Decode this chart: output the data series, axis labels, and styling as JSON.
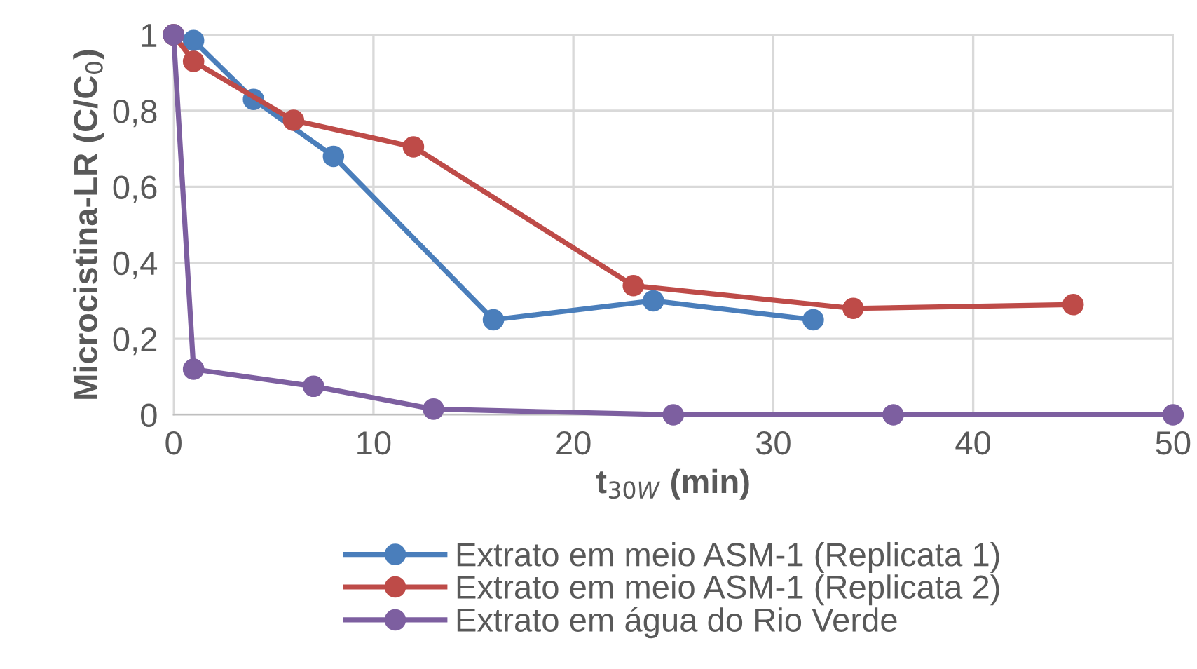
{
  "chart_data": {
    "type": "line",
    "xlabel": "t$_{30W}$ (min)",
    "ylabel": "Microcistina-LR (C/C$_{0}$)",
    "xlim": [
      0,
      50
    ],
    "xticks": [
      0,
      10,
      20,
      30,
      40,
      50
    ],
    "ylim": [
      0,
      1
    ],
    "yticks": [
      0,
      {
        "value": 0.2,
        "label": "0,2"
      },
      {
        "value": 0.4,
        "label": "0,4"
      },
      {
        "value": 0.6,
        "label": "0,6"
      },
      {
        "value": 0.8,
        "label": "0,8"
      },
      1
    ],
    "grid": true,
    "legend": "bottom",
    "marker": "circle",
    "line_style": "solid",
    "series": [
      {
        "name": "Extrato em meio ASM-1 (Replicata 1)",
        "color": "#4a7ebb",
        "x": [
          0,
          1,
          4,
          8,
          16,
          24,
          32
        ],
        "values": [
          1,
          0.985,
          0.83,
          0.68,
          0.25,
          0.3,
          0.25
        ]
      },
      {
        "name": "Extrato em meio ASM-1 (Replicata 2)",
        "color": "#be4b48",
        "x": [
          0,
          1,
          6,
          12,
          23,
          34,
          45
        ],
        "values": [
          1,
          0.93,
          0.775,
          0.705,
          0.34,
          0.28,
          0.29
        ]
      },
      {
        "name": "Extrato em água do Rio Verde",
        "color": "#7d5fa0",
        "x": [
          0,
          1,
          7,
          13,
          25,
          36,
          50
        ],
        "values": [
          1,
          0.12,
          0.075,
          0.015,
          0,
          0,
          0
        ]
      }
    ]
  }
}
